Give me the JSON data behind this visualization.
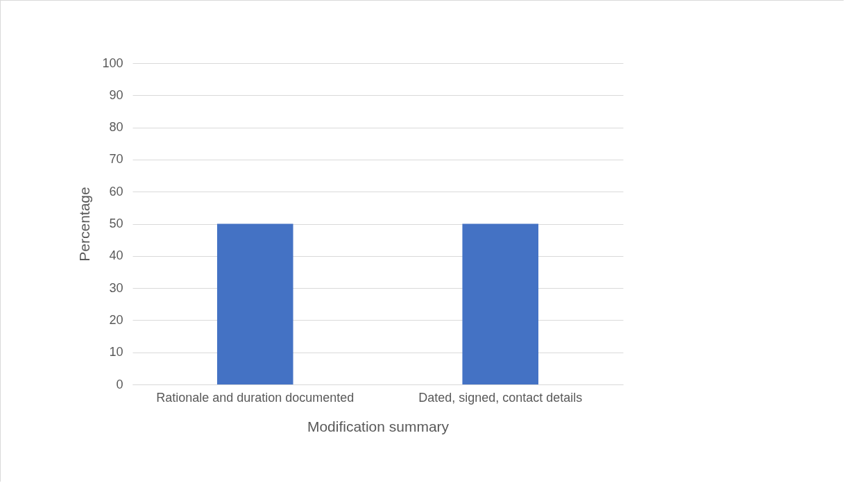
{
  "chart_data": {
    "type": "bar",
    "xlabel": "Modification summary",
    "ylabel": "Percentage",
    "categories": [
      "Rationale and duration documented",
      "Dated, signed, contact details"
    ],
    "values": [
      50,
      50
    ],
    "color": "#4472c4",
    "ylim": [
      0,
      100
    ],
    "yticks": [
      0,
      10,
      20,
      30,
      40,
      50,
      60,
      70,
      80,
      90,
      100
    ],
    "grid": "y"
  }
}
